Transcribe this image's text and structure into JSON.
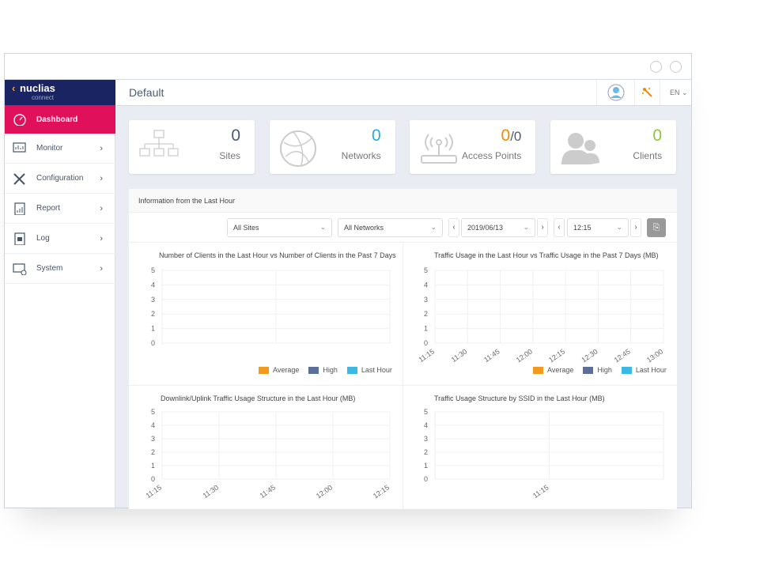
{
  "window": {
    "controls": [
      "minimize",
      "close"
    ]
  },
  "logo": {
    "brand": "nuclias",
    "sub": "connect"
  },
  "sidebar": {
    "items": [
      {
        "label": "Dashboard",
        "icon": "dashboard-gauge-icon",
        "active": true
      },
      {
        "label": "Monitor",
        "icon": "monitor-icon"
      },
      {
        "label": "Configuration",
        "icon": "tools-icon"
      },
      {
        "label": "Report",
        "icon": "report-icon"
      },
      {
        "label": "Log",
        "icon": "log-icon"
      },
      {
        "label": "System",
        "icon": "system-gear-icon"
      }
    ]
  },
  "header": {
    "title": "Default",
    "language": "EN",
    "icons": [
      "user-avatar-icon",
      "magic-wand-icon"
    ]
  },
  "cards": [
    {
      "value": "0",
      "label": "Sites",
      "color": "#4a5a73"
    },
    {
      "value": "0",
      "label": "Networks",
      "color": "#2ba8e0"
    },
    {
      "value": "0",
      "value2": "/0",
      "label": "Access Points",
      "color": "#f28a00"
    },
    {
      "value": "0",
      "label": "Clients",
      "color": "#8cc63f"
    }
  ],
  "panel": {
    "title": "Information from the Last Hour",
    "filters": {
      "site": "All Sites",
      "network": "All Networks",
      "date": "2019/06/13",
      "time": "12:15"
    }
  },
  "legend": [
    {
      "name": "Average",
      "color": "#f39a1e"
    },
    {
      "name": "High",
      "color": "#5b6f99"
    },
    {
      "name": "Last Hour",
      "color": "#3cb8e6"
    }
  ],
  "chart_data": [
    {
      "type": "bar",
      "title": "Number of Clients in the Last Hour vs Number of Clients in the Past 7 Days",
      "ylim": [
        0,
        5
      ],
      "yticks": [
        "5",
        "4",
        "3",
        "2",
        "1",
        "0"
      ],
      "xticks": [],
      "series": [
        {
          "name": "Average",
          "values": []
        },
        {
          "name": "High",
          "values": []
        },
        {
          "name": "Last Hour",
          "values": []
        }
      ]
    },
    {
      "type": "line",
      "title": "Traffic Usage in the Last Hour vs Traffic Usage in the Past 7 Days (MB)",
      "ylim": [
        0,
        5
      ],
      "yticks": [
        "5",
        "4",
        "3",
        "2",
        "1",
        "0"
      ],
      "xticks": [
        "11:15",
        "11:30",
        "11:45",
        "12:00",
        "12:15",
        "12:30",
        "12:45",
        "13:00"
      ],
      "series": [
        {
          "name": "Average",
          "values": []
        },
        {
          "name": "High",
          "values": []
        },
        {
          "name": "Last Hour",
          "values": []
        }
      ]
    },
    {
      "type": "area",
      "title": "Downlink/Uplink Traffic Usage Structure in the Last Hour (MB)",
      "ylim": [
        0,
        5
      ],
      "yticks": [
        "5",
        "4",
        "3",
        "2",
        "1",
        "0"
      ],
      "xticks": [
        "11:15",
        "11:30",
        "11:45",
        "12:00",
        "12:15"
      ],
      "series": []
    },
    {
      "type": "bar",
      "title": "Traffic Usage Structure by SSID in the Last Hour (MB)",
      "ylim": [
        0,
        5
      ],
      "yticks": [
        "5",
        "4",
        "3",
        "2",
        "1",
        "0"
      ],
      "xticks": [
        "11:15"
      ],
      "series": []
    }
  ]
}
